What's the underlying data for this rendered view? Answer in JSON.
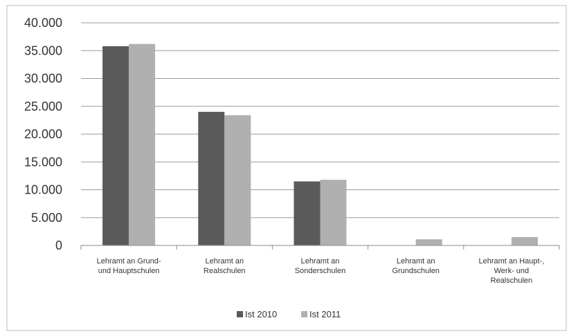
{
  "chart_data": {
    "type": "bar",
    "title": "",
    "xlabel": "",
    "ylabel": "",
    "ylim": [
      0,
      40000
    ],
    "yticks": [
      0,
      5000,
      10000,
      15000,
      20000,
      25000,
      30000,
      35000,
      40000
    ],
    "ytick_labels": [
      "0",
      "5.000",
      "10.000",
      "15.000",
      "20.000",
      "25.000",
      "30.000",
      "35.000",
      "40.000"
    ],
    "grid": true,
    "legend_position": "bottom",
    "categories": [
      [
        "Lehramt an Grund-",
        "und Hauptschulen"
      ],
      [
        "Lehramt an",
        "Realschulen"
      ],
      [
        "Lehramt an",
        "Sonderschulen"
      ],
      [
        "Lehramt an",
        "Grundschulen"
      ],
      [
        "Lehramt an Haupt-,",
        "Werk- und",
        "Realschulen"
      ]
    ],
    "series": [
      {
        "name": "Ist 2010",
        "color": "#5a5a5a",
        "values": [
          35800,
          24000,
          11500,
          0,
          0
        ]
      },
      {
        "name": "Ist 2011",
        "color": "#b0b0b0",
        "values": [
          36200,
          23400,
          11800,
          1100,
          1500
        ]
      }
    ]
  }
}
